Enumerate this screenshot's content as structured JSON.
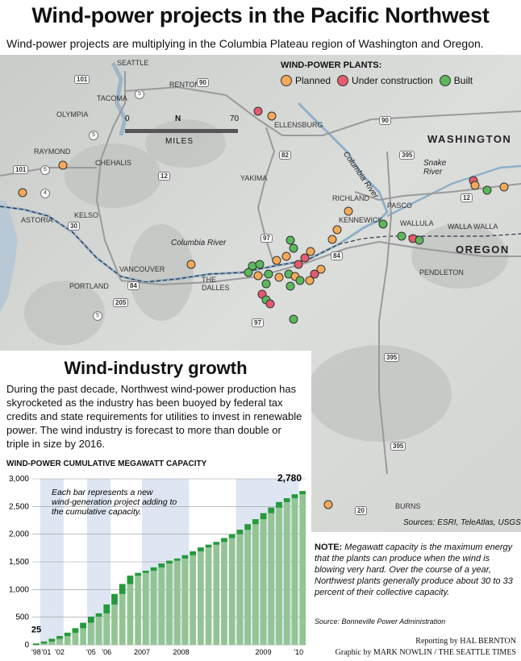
{
  "title": "Wind-power projects in the Pacific Northwest",
  "subtitle": "Wind-power projects are multiplying in the Columbia Plateau region of Washington and Oregon.",
  "legend": {
    "title": "WIND-POWER PLANTS:",
    "items": [
      {
        "label": "Planned",
        "color": "#f4a95a"
      },
      {
        "label": "Under construction",
        "color": "#e35b6e"
      },
      {
        "label": "Built",
        "color": "#5cb85c"
      }
    ]
  },
  "map": {
    "states": [
      "WASHINGTON",
      "OREGON"
    ],
    "cities": [
      "SEATTLE",
      "RENTON",
      "TACOMA",
      "OLYMPIA",
      "ELLENSBURG",
      "RAYMOND",
      "CHEHALIS",
      "YAKIMA",
      "ASTORIA",
      "KELSO",
      "RICHLAND",
      "PASCO",
      "KENNEWICK",
      "WALLULA",
      "WALLA WALLA",
      "VANCOUVER",
      "PORTLAND",
      "THE DALLES",
      "PENDLETON",
      "BURNS"
    ],
    "rivers": [
      "Columbia River",
      "Columbia River",
      "Snake River"
    ],
    "highways": [
      "101",
      "5",
      "90",
      "82",
      "12",
      "84",
      "97",
      "395",
      "30",
      "205",
      "20",
      "6",
      "4",
      "101",
      "5",
      "395",
      "395",
      "97",
      "12",
      "5"
    ],
    "scale": {
      "zero": "0",
      "max": "70",
      "unit": "MILES",
      "north": "N"
    },
    "sources": "Sources: ESRI, TeleAtlas, USGS"
  },
  "growth": {
    "title": "Wind-industry growth",
    "description": "During the past decade, Northwest wind-power production has skyrocketed as the industry has been buoyed by federal tax credits and state requirements for utilities to invest in renewable power. The wind industry is forecast to more than double or triple in size by 2016."
  },
  "chart_title": "WIND-POWER CUMULATIVE MEGAWATT CAPACITY",
  "chart_data": {
    "type": "bar",
    "title": "WIND-POWER CUMULATIVE MEGAWATT CAPACITY",
    "ylim": [
      0,
      3000
    ],
    "yticks": [
      "0",
      "500",
      "1,000",
      "1,500",
      "2,000",
      "2,500",
      "3,000"
    ],
    "xlabels": [
      "'98",
      "'01",
      "'02",
      "'05",
      "'06",
      "2007",
      "2008",
      "2009",
      "'10"
    ],
    "annotation": "Each bar represents a new wind-generation project adding to the cumulative capacity.",
    "first_label": "25",
    "last_label": "2,780",
    "values": [
      25,
      60,
      110,
      160,
      220,
      300,
      400,
      510,
      570,
      730,
      920,
      1100,
      1250,
      1300,
      1340,
      1400,
      1470,
      1520,
      1560,
      1620,
      1690,
      1760,
      1810,
      1860,
      1930,
      2000,
      2080,
      2180,
      2270,
      2380,
      2480,
      2580,
      2650,
      2720,
      2780
    ]
  },
  "note": {
    "label": "NOTE:",
    "text": "Megawatt capacity is the maximum energy that the plants can produce when the wind is blowing very hard. Over the course of a year, Northwest plants generally produce about 30 to 33 percent of their collective capacity.",
    "source": "Source: Bonneville Power Administration"
  },
  "credits": {
    "reporting": "Reporting by HAL BERNTON",
    "graphic": "Graphic by MARK NOWLIN / THE SEATTLE TIMES"
  }
}
